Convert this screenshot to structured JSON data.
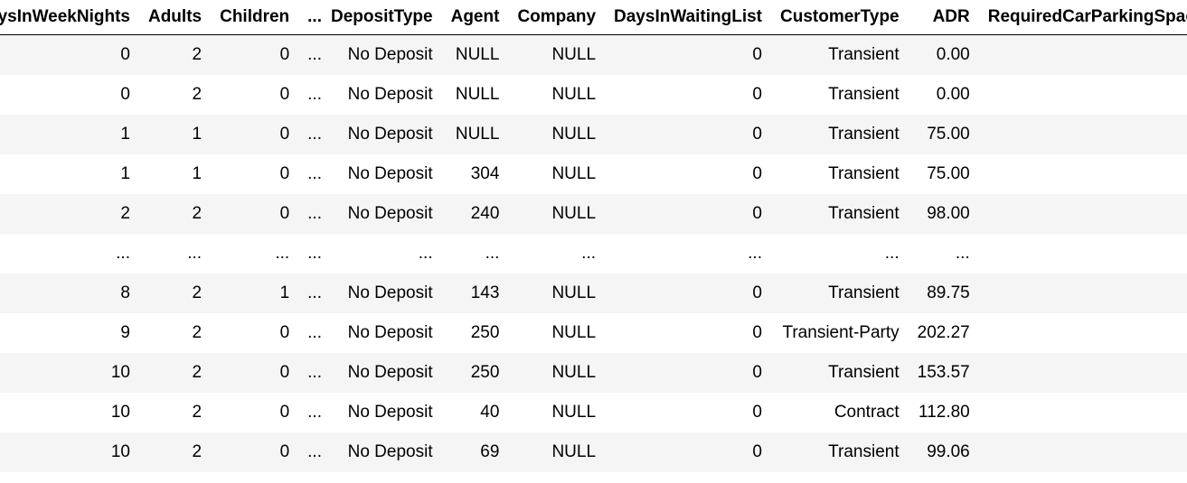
{
  "table": {
    "columns": [
      "StaysInWeekNights",
      "Adults",
      "Children",
      "...",
      "DepositType",
      "Agent",
      "Company",
      "DaysInWaitingList",
      "CustomerType",
      "ADR",
      "RequiredCarParkingSpaces"
    ],
    "rows": [
      [
        "0",
        "2",
        "0",
        "...",
        "No Deposit",
        "NULL",
        "NULL",
        "0",
        "Transient",
        "0.00",
        ""
      ],
      [
        "0",
        "2",
        "0",
        "...",
        "No Deposit",
        "NULL",
        "NULL",
        "0",
        "Transient",
        "0.00",
        ""
      ],
      [
        "1",
        "1",
        "0",
        "...",
        "No Deposit",
        "NULL",
        "NULL",
        "0",
        "Transient",
        "75.00",
        ""
      ],
      [
        "1",
        "1",
        "0",
        "...",
        "No Deposit",
        "304",
        "NULL",
        "0",
        "Transient",
        "75.00",
        ""
      ],
      [
        "2",
        "2",
        "0",
        "...",
        "No Deposit",
        "240",
        "NULL",
        "0",
        "Transient",
        "98.00",
        ""
      ],
      [
        "...",
        "...",
        "...",
        "...",
        "...",
        "...",
        "...",
        "...",
        "...",
        "...",
        ""
      ],
      [
        "8",
        "2",
        "1",
        "...",
        "No Deposit",
        "143",
        "NULL",
        "0",
        "Transient",
        "89.75",
        ""
      ],
      [
        "9",
        "2",
        "0",
        "...",
        "No Deposit",
        "250",
        "NULL",
        "0",
        "Transient-Party",
        "202.27",
        ""
      ],
      [
        "10",
        "2",
        "0",
        "...",
        "No Deposit",
        "250",
        "NULL",
        "0",
        "Transient",
        "153.57",
        ""
      ],
      [
        "10",
        "2",
        "0",
        "...",
        "No Deposit",
        "40",
        "NULL",
        "0",
        "Contract",
        "112.80",
        ""
      ],
      [
        "10",
        "2",
        "0",
        "...",
        "No Deposit",
        "69",
        "NULL",
        "0",
        "Transient",
        "99.06",
        ""
      ]
    ]
  }
}
